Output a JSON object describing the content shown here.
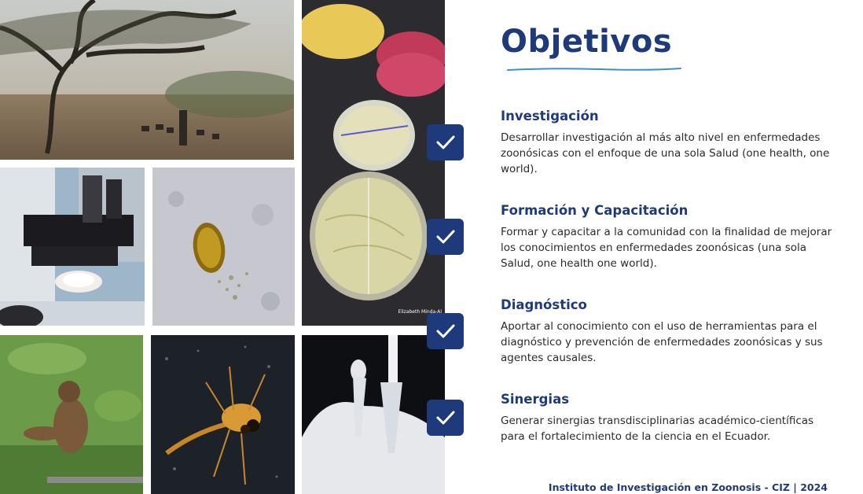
{
  "title": "Objetivos",
  "photo_credit": "Elizabeth Minda-Al",
  "photos": [
    {
      "name": "dry-forest-goats-photo"
    },
    {
      "name": "microscope-photo"
    },
    {
      "name": "parasite-egg-micrograph"
    },
    {
      "name": "petri-dishes-photo"
    },
    {
      "name": "monkey-photo"
    },
    {
      "name": "insect-larva-micrograph"
    },
    {
      "name": "gloved-hand-pipette-tube-photo"
    }
  ],
  "sections": [
    {
      "heading": "Investigación",
      "text": "Desarrollar investigación al más alto nivel en enfermedades zoonósicas con el enfoque de una sola Salud (one health, one world)."
    },
    {
      "heading": "Formación y Capacitación",
      "text": "Formar y capacitar a la comunidad con la finalidad de mejorar los conocimientos en enfermedades zoonósicas (una sola Salud, one health one world)."
    },
    {
      "heading": "Diagnóstico",
      "text": "Aportar al conocimiento con el uso de herramientas para el diagnóstico y prevención de enfermedades zoonósicas y sus agentes causales."
    },
    {
      "heading": "Sinergias",
      "text": "Generar sinergias transdisciplinarias académico-científicas para el fortalecimiento de la ciencia en el Ecuador."
    }
  ],
  "footer": "Instituto de Investigación en Zoonosis - CIZ | 2024",
  "colors": {
    "accent": "#1f3a7a",
    "underline": "#3a8fd6",
    "text": "#2b2b2b"
  }
}
